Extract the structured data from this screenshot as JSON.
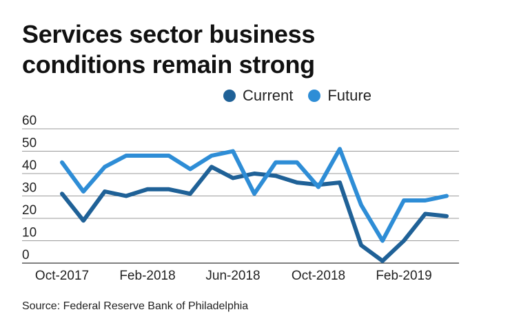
{
  "title_line1": "Services sector business",
  "title_line2": "conditions remain strong",
  "source": "Source: Federal Reserve Bank of Philadelphia",
  "colors": {
    "current": "#1f6197",
    "future": "#2e8dd6",
    "grid": "#999999",
    "axis": "#555555"
  },
  "chart_data": {
    "type": "line",
    "legend_placement": "top-right",
    "grid": true,
    "ylim": [
      0,
      60
    ],
    "yticks": [
      0,
      10,
      20,
      30,
      40,
      50,
      60
    ],
    "x": [
      "Oct-2017",
      "Nov-2017",
      "Dec-2017",
      "Jan-2018",
      "Feb-2018",
      "Mar-2018",
      "Apr-2018",
      "May-2018",
      "Jun-2018",
      "Jul-2018",
      "Aug-2018",
      "Sep-2018",
      "Oct-2018",
      "Nov-2018",
      "Dec-2018",
      "Jan-2019",
      "Feb-2019",
      "Mar-2019",
      "Apr-2019"
    ],
    "xtick_labels": [
      "Oct-2017",
      "Feb-2018",
      "Jun-2018",
      "Oct-2018",
      "Feb-2019"
    ],
    "xtick_indices": [
      0,
      4,
      8,
      12,
      16
    ],
    "series": [
      {
        "name": "Current",
        "values": [
          31,
          19,
          32,
          30,
          33,
          33,
          31,
          43,
          38,
          40,
          39,
          36,
          35,
          36,
          8,
          1,
          10,
          22,
          21
        ]
      },
      {
        "name": "Future",
        "values": [
          45,
          32,
          43,
          48,
          48,
          48,
          42,
          48,
          50,
          31,
          45,
          45,
          34,
          51,
          26,
          10,
          28,
          28,
          30
        ]
      }
    ]
  }
}
